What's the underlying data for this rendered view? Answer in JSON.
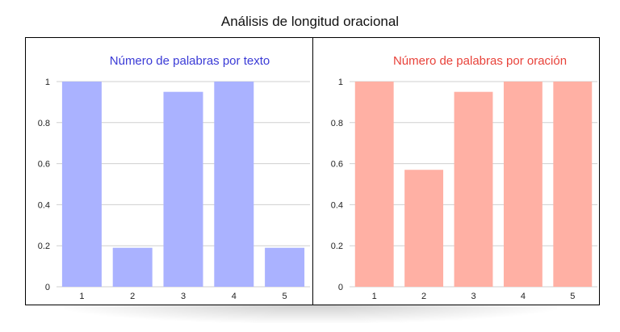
{
  "title": "Análisis de longitud oracional",
  "chart_data": [
    {
      "type": "bar",
      "title": "Número de palabras por texto",
      "title_color": "#3a3ad6",
      "bar_color": "#aab2ff",
      "categories": [
        "1",
        "2",
        "3",
        "4",
        "5"
      ],
      "values": [
        1.0,
        0.19,
        0.95,
        1.0,
        0.19
      ],
      "ylim": [
        0,
        1
      ],
      "yticks": [
        "0",
        "0.2",
        "0.4",
        "0.6",
        "0.8",
        "1"
      ],
      "grid": true
    },
    {
      "type": "bar",
      "title": "Número de palabras por oración",
      "title_color": "#e8423a",
      "bar_color": "#ffb0a4",
      "categories": [
        "1",
        "2",
        "3",
        "4",
        "5"
      ],
      "values": [
        1.0,
        0.57,
        0.95,
        1.0,
        1.0
      ],
      "ylim": [
        0,
        1
      ],
      "yticks": [
        "0",
        "0.2",
        "0.4",
        "0.6",
        "0.8",
        "1"
      ],
      "grid": true
    }
  ]
}
